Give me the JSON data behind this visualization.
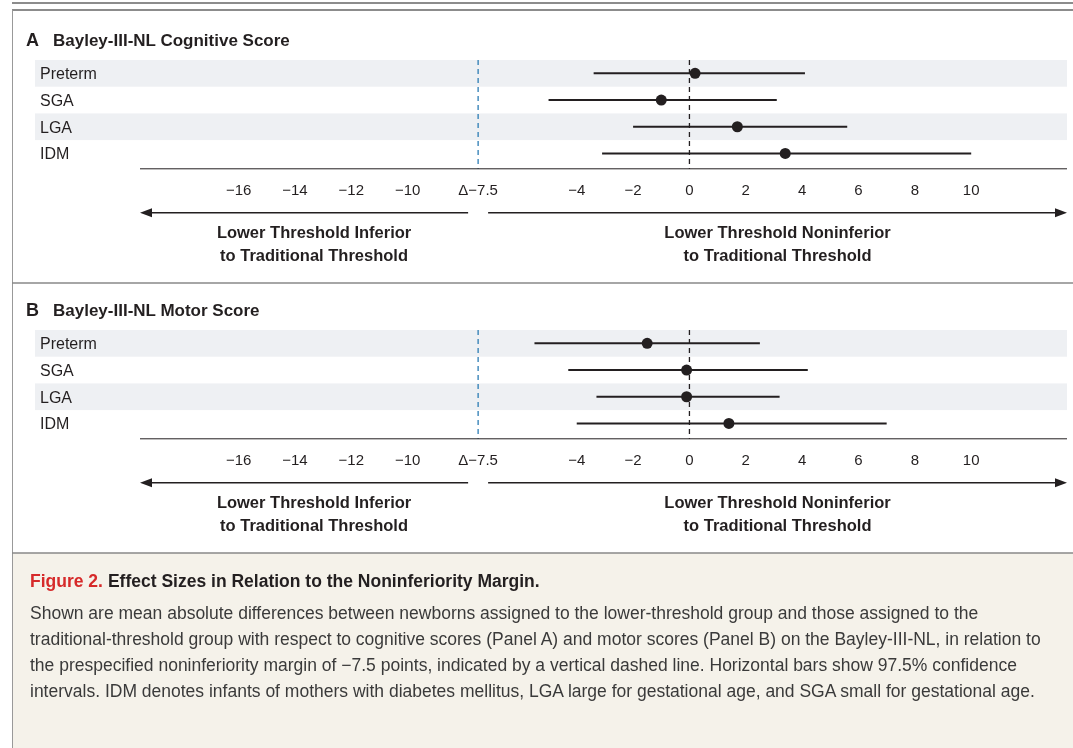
{
  "chart_data": [
    {
      "type": "scatter",
      "orientation": "horizontal",
      "title": "Bayley-III-NL Cognitive Score",
      "categories": [
        "Preterm",
        "SGA",
        "LGA",
        "IDM"
      ],
      "series": [
        {
          "color": "#231f20",
          "values": [
            0.2,
            -1.0,
            1.7,
            3.4
          ],
          "errors": [
            [
              -3.4,
              4.1
            ],
            [
              -5.0,
              3.1
            ],
            [
              -2.0,
              5.6
            ],
            [
              -3.1,
              10.0
            ]
          ]
        }
      ],
      "marker": "circle",
      "grid": false,
      "xlim": [
        -19.5,
        13.4
      ],
      "xticks": [
        {
          "value": -16,
          "label": "−16"
        },
        {
          "value": -14,
          "label": "−14"
        },
        {
          "value": -12,
          "label": "−12"
        },
        {
          "value": -10,
          "label": "−10"
        },
        {
          "value": -7.5,
          "label": "Δ−7.5"
        },
        {
          "value": -4,
          "label": "−4"
        },
        {
          "value": -2,
          "label": "−2"
        },
        0,
        2,
        4,
        6,
        8,
        10
      ],
      "ref_lines": [
        {
          "axis": "x",
          "value": -7.5,
          "color": "#2b7bb4",
          "line_style": "dashed"
        },
        {
          "axis": "x",
          "value": 0,
          "color": "#231f20",
          "line_style": "dashed"
        }
      ],
      "annotations": [
        "A",
        "Lower Threshold Inferior\nto Traditional Threshold",
        "Lower Threshold Noninferior\nto Traditional Threshold"
      ]
    },
    {
      "type": "scatter",
      "orientation": "horizontal",
      "title": "Bayley-III-NL Motor Score",
      "categories": [
        "Preterm",
        "SGA",
        "LGA",
        "IDM"
      ],
      "series": [
        {
          "color": "#231f20",
          "values": [
            -1.5,
            -0.1,
            -0.1,
            1.4
          ],
          "errors": [
            [
              -5.5,
              2.5
            ],
            [
              -4.3,
              4.2
            ],
            [
              -3.3,
              3.2
            ],
            [
              -4.0,
              7.0
            ]
          ]
        }
      ],
      "marker": "circle",
      "grid": false,
      "xlim": [
        -19.5,
        13.4
      ],
      "xticks": [
        {
          "value": -16,
          "label": "−16"
        },
        {
          "value": -14,
          "label": "−14"
        },
        {
          "value": -12,
          "label": "−12"
        },
        {
          "value": -10,
          "label": "−10"
        },
        {
          "value": -7.5,
          "label": "Δ−7.5"
        },
        {
          "value": -4,
          "label": "−4"
        },
        {
          "value": -2,
          "label": "−2"
        },
        0,
        2,
        4,
        6,
        8,
        10
      ],
      "ref_lines": [
        {
          "axis": "x",
          "value": -7.5,
          "color": "#2b7bb4",
          "line_style": "dashed"
        },
        {
          "axis": "x",
          "value": 0,
          "color": "#231f20",
          "line_style": "dashed"
        }
      ],
      "annotations": [
        "B",
        "Lower Threshold Inferior\nto Traditional Threshold",
        "Lower Threshold Noninferior\nto Traditional Threshold",
        "Figure 2.",
        "Effect Sizes in Relation to the Noninferiority Margin.",
        "Shown are mean absolute differences between newborns assigned to the lower-threshold group and those assigned to the traditional-threshold group with respect to cognitive scores (Panel A) and motor scores (Panel B) on the Bayley-III-NL, in relation to the prespecified noninferiority margin of −7.5 points, indicated by a vertical dashed line. Horizontal bars show 97.5% confidence intervals. IDM denotes infants of mothers with diabetes mellitus, LGA large for gestational age, and SGA small for gestational age."
      ]
    }
  ]
}
